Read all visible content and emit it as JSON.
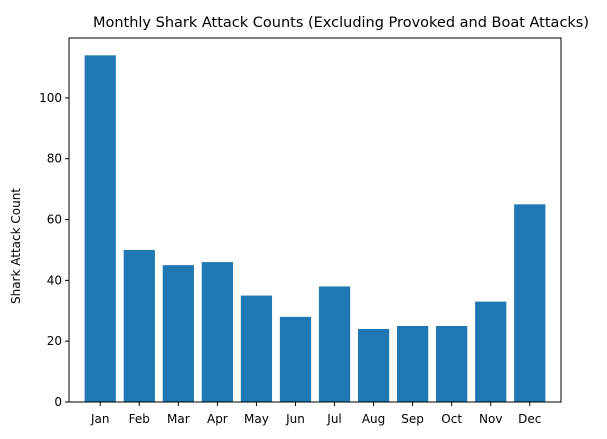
{
  "chart_data": {
    "type": "bar",
    "title": "Monthly Shark Attack Counts (Excluding Provoked and Boat Attacks)",
    "xlabel": "",
    "ylabel": "Shark Attack Count",
    "categories": [
      "Jan",
      "Feb",
      "Mar",
      "Apr",
      "May",
      "Jun",
      "Jul",
      "Aug",
      "Sep",
      "Oct",
      "Nov",
      "Dec"
    ],
    "values": [
      114,
      50,
      45,
      46,
      35,
      28,
      38,
      24,
      25,
      25,
      33,
      65
    ],
    "ylim": [
      0,
      119.7
    ],
    "yticks": [
      0,
      20,
      40,
      60,
      80,
      100
    ],
    "bar_color": "#1f77b4",
    "grid": false,
    "legend": "none"
  }
}
